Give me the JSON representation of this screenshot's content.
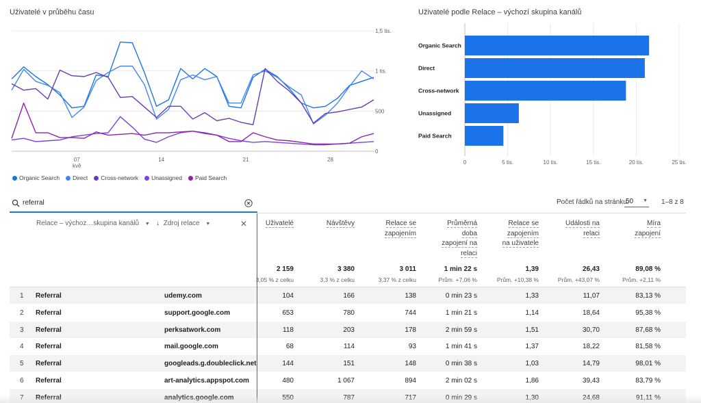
{
  "line_card": {
    "title": "Uživatelé v průběhu času"
  },
  "bar_card": {
    "title": "Uživatelé podle Relace – výchozí skupina kanálů"
  },
  "chart_data": [
    {
      "type": "line",
      "title": "Uživatelé v průběhu času",
      "x_tick_labels": [
        "07\nkvě",
        "14",
        "21",
        "28"
      ],
      "y_tick_labels": [
        "1,5 tis.",
        "1 tis.",
        "500",
        "0"
      ],
      "ylim": [
        0,
        1500
      ],
      "grid": true,
      "legend_position": "bottom",
      "x": [
        1,
        2,
        3,
        4,
        5,
        6,
        7,
        8,
        9,
        10,
        11,
        12,
        13,
        14,
        15,
        16,
        17,
        18,
        19,
        20,
        21,
        22,
        23,
        24,
        25,
        26,
        27,
        28,
        29,
        30,
        31
      ],
      "series": [
        {
          "name": "Organic Search",
          "color": "#1a73e8",
          "values": [
            900,
            1050,
            930,
            830,
            700,
            540,
            560,
            950,
            930,
            1360,
            1350,
            980,
            560,
            640,
            1030,
            900,
            1030,
            930,
            560,
            540,
            920,
            1020,
            930,
            780,
            600,
            540,
            560,
            660,
            820,
            870,
            920
          ]
        },
        {
          "name": "Direct",
          "color": "#4285f4",
          "values": [
            760,
            1020,
            870,
            820,
            730,
            420,
            550,
            880,
            980,
            1060,
            1060,
            830,
            400,
            520,
            890,
            950,
            890,
            930,
            600,
            600,
            950,
            1000,
            920,
            800,
            700,
            340,
            450,
            600,
            810,
            1000,
            900
          ]
        },
        {
          "name": "Cross-network",
          "color": "#673ab7",
          "values": [
            840,
            760,
            780,
            650,
            1010,
            940,
            930,
            980,
            920,
            670,
            680,
            550,
            420,
            560,
            560,
            400,
            480,
            380,
            410,
            360,
            330,
            1030,
            870,
            750,
            600,
            350,
            470,
            490,
            520,
            550,
            640
          ]
        },
        {
          "name": "Unassigned",
          "color": "#7b3fe4",
          "values": [
            140,
            160,
            120,
            130,
            140,
            180,
            200,
            220,
            230,
            430,
            300,
            150,
            110,
            180,
            230,
            250,
            220,
            200,
            160,
            130,
            110,
            120,
            110,
            100,
            90,
            80,
            80,
            90,
            100,
            110,
            120
          ]
        },
        {
          "name": "Paid Search",
          "color": "#8e24aa",
          "values": [
            160,
            600,
            230,
            230,
            170,
            170,
            160,
            240,
            200,
            210,
            220,
            200,
            230,
            230,
            240,
            250,
            230,
            200,
            120,
            120,
            230,
            180,
            140,
            130,
            110,
            90,
            90,
            90,
            100,
            180,
            220
          ]
        }
      ]
    },
    {
      "type": "bar",
      "orientation": "horizontal",
      "title": "Uživatelé podle Relace – výchozí skupina kanálů",
      "categories": [
        "Organic Search",
        "Direct",
        "Cross-network",
        "Unassigned",
        "Paid Search"
      ],
      "values": [
        21500,
        21000,
        18800,
        6300,
        4500
      ],
      "x_tick_labels": [
        "0",
        "5 tis.",
        "10 tis.",
        "15 tis.",
        "20 tis.",
        "25 tis."
      ],
      "xlim": [
        0,
        25000
      ],
      "grid": true,
      "color": "#1a73e8"
    }
  ],
  "search": {
    "value": "referral"
  },
  "pagination": {
    "rows_label": "Počet řádků na stránku:",
    "rows_value": "50",
    "range": "1–8 z 8"
  },
  "dimensions": {
    "primary": "Relace – výchoz…skupina kanálů",
    "secondary": "Zdroj relace"
  },
  "columns": [
    {
      "lines": [
        "Uživatelé"
      ]
    },
    {
      "lines": [
        "Návštěvy"
      ]
    },
    {
      "lines": [
        "Relace se",
        "zapojením"
      ]
    },
    {
      "lines": [
        "Průměrná",
        "doba",
        "zapojení na",
        "relaci"
      ]
    },
    {
      "lines": [
        "Relace se",
        "zapojením",
        "na uživatele"
      ]
    },
    {
      "lines": [
        "Události na",
        "relaci"
      ]
    },
    {
      "lines": [
        "Míra",
        "zapojení"
      ]
    }
  ],
  "totals": [
    {
      "value": "2 159",
      "sub": "3,05 % z celku"
    },
    {
      "value": "3 380",
      "sub": "3,3 % z celku"
    },
    {
      "value": "3 011",
      "sub": "3,37 % z celku"
    },
    {
      "value": "1 min 22 s",
      "sub": "Prům. +7,06 %"
    },
    {
      "value": "1,39",
      "sub": "Prům. +10,38 %"
    },
    {
      "value": "26,43",
      "sub": "Prům. +43,07 %"
    },
    {
      "value": "89,08 %",
      "sub": "Prům. +2,11 %"
    }
  ],
  "rows": [
    {
      "idx": "1",
      "channel": "Referral",
      "source": "udemy.com",
      "vals": [
        "104",
        "166",
        "138",
        "0 min 23 s",
        "1,33",
        "11,07",
        "83,13 %"
      ]
    },
    {
      "idx": "2",
      "channel": "Referral",
      "source": "support.google.com",
      "vals": [
        "653",
        "780",
        "744",
        "1 min 21 s",
        "1,14",
        "18,64",
        "95,38 %"
      ]
    },
    {
      "idx": "3",
      "channel": "Referral",
      "source": "perksatwork.com",
      "vals": [
        "118",
        "203",
        "178",
        "2 min 59 s",
        "1,51",
        "30,70",
        "87,68 %"
      ]
    },
    {
      "idx": "4",
      "channel": "Referral",
      "source": "mail.google.com",
      "vals": [
        "68",
        "114",
        "93",
        "1 min 41 s",
        "1,37",
        "18,22",
        "81,58 %"
      ]
    },
    {
      "idx": "5",
      "channel": "Referral",
      "source": "googleads.g.doubleclick.net",
      "vals": [
        "144",
        "151",
        "148",
        "0 min 38 s",
        "1,03",
        "14,79",
        "98,01 %"
      ]
    },
    {
      "idx": "6",
      "channel": "Referral",
      "source": "art-analytics.appspot.com",
      "vals": [
        "480",
        "1 067",
        "894",
        "2 min 02 s",
        "1,86",
        "39,43",
        "83,79 %"
      ]
    },
    {
      "idx": "7",
      "channel": "Referral",
      "source": "analytics.google.com",
      "vals": [
        "550",
        "787",
        "717",
        "0 min 29 s",
        "1,30",
        "24,68",
        "91,11 %"
      ]
    }
  ]
}
